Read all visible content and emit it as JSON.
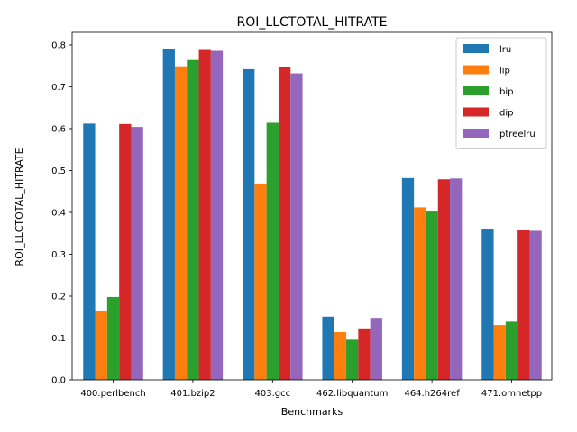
{
  "chart_data": {
    "type": "bar",
    "title": "ROI_LLCTOTAL_HITRATE",
    "xlabel": "Benchmarks",
    "ylabel": "ROI_LLCTOTAL_HITRATE",
    "ylim": [
      0,
      0.83
    ],
    "yticks": [
      0.0,
      0.1,
      0.2,
      0.3,
      0.4,
      0.5,
      0.6,
      0.7,
      0.8
    ],
    "ytick_labels": [
      "0.0",
      "0.1",
      "0.2",
      "0.3",
      "0.4",
      "0.5",
      "0.6",
      "0.7",
      "0.8"
    ],
    "grid": false,
    "legend_position": "top-right",
    "categories": [
      "400.perlbench",
      "401.bzip2",
      "403.gcc",
      "462.libquantum",
      "464.h264ref",
      "471.omnetpp"
    ],
    "series": [
      {
        "name": "lru",
        "color": "#1f77b4",
        "values": [
          0.612,
          0.79,
          0.742,
          0.151,
          0.482,
          0.359
        ]
      },
      {
        "name": "lip",
        "color": "#ff7f0e",
        "values": [
          0.165,
          0.749,
          0.469,
          0.114,
          0.412,
          0.131
        ]
      },
      {
        "name": "bip",
        "color": "#2ca02c",
        "values": [
          0.198,
          0.764,
          0.614,
          0.096,
          0.402,
          0.139
        ]
      },
      {
        "name": "dip",
        "color": "#d62728",
        "values": [
          0.611,
          0.788,
          0.748,
          0.123,
          0.479,
          0.357
        ]
      },
      {
        "name": "ptreelru",
        "color": "#9467bd",
        "values": [
          0.604,
          0.786,
          0.732,
          0.148,
          0.481,
          0.356
        ]
      }
    ]
  }
}
